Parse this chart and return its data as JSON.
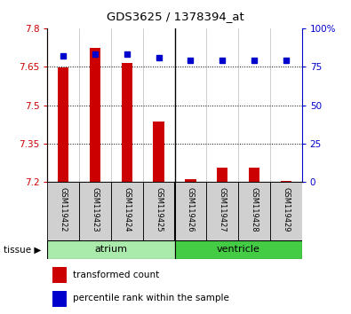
{
  "title": "GDS3625 / 1378394_at",
  "samples": [
    "GSM119422",
    "GSM119423",
    "GSM119424",
    "GSM119425",
    "GSM119426",
    "GSM119427",
    "GSM119428",
    "GSM119429"
  ],
  "transformed_count": [
    7.647,
    7.722,
    7.666,
    7.435,
    7.213,
    7.255,
    7.258,
    7.205
  ],
  "percentile_rank": [
    82,
    83,
    83,
    81,
    79,
    79,
    79,
    79
  ],
  "ymin": 7.2,
  "ymax": 7.8,
  "yticks": [
    7.2,
    7.35,
    7.5,
    7.65,
    7.8
  ],
  "ytick_labels": [
    "7.2",
    "7.35",
    "7.5",
    "7.65",
    "7.8"
  ],
  "y2ticks": [
    0,
    25,
    50,
    75,
    100
  ],
  "y2tick_labels": [
    "0",
    "25",
    "50",
    "75",
    "100%"
  ],
  "grid_lines": [
    7.35,
    7.5,
    7.65
  ],
  "bar_color": "#CC0000",
  "dot_color": "#0000CC",
  "bar_base": 7.2,
  "atrium_color": "#AAEAAA",
  "ventricle_color": "#44CC44",
  "sample_bg": "#D0D0D0",
  "legend_bar_label": "transformed count",
  "legend_dot_label": "percentile rank within the sample",
  "atrium_count": 4,
  "ventricle_count": 4
}
